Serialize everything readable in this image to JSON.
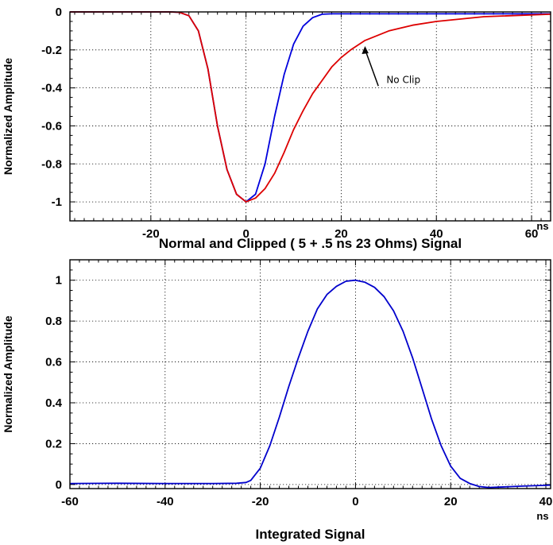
{
  "chart_data": [
    {
      "type": "line",
      "title": "",
      "xlabel": "Normal and Clipped ( 5 + .5 ns  23 Ohms) Signal",
      "ylabel": "Normalized Amplitude",
      "x_unit": "ns",
      "xlim": [
        -37,
        64
      ],
      "ylim": [
        -1.1,
        0.0
      ],
      "xticks": [
        -20,
        0,
        20,
        40,
        60
      ],
      "yticks": [
        0,
        -0.2,
        -0.4,
        -0.6,
        -0.8,
        -1
      ],
      "xtick_labels": [
        "-20",
        "0",
        "20",
        "40",
        "60"
      ],
      "ytick_labels": [
        "0",
        "-0.2",
        "-0.4",
        "-0.6",
        "-0.8",
        "-1"
      ],
      "grid": true,
      "series": [
        {
          "color": "#0000dd",
          "x": [
            -37,
            -20,
            -16,
            -14,
            -12,
            -10,
            -8,
            -6,
            -4,
            -2,
            0,
            2,
            4,
            6,
            8,
            10,
            12,
            14,
            16,
            18,
            20,
            22,
            25,
            30,
            40,
            50,
            64
          ],
          "y": [
            0,
            0,
            0,
            -0.002,
            -0.02,
            -0.1,
            -0.3,
            -0.6,
            -0.83,
            -0.96,
            -1.0,
            -0.96,
            -0.8,
            -0.55,
            -0.33,
            -0.17,
            -0.075,
            -0.03,
            -0.012,
            -0.01,
            -0.01,
            -0.01,
            -0.01,
            -0.01,
            -0.01,
            -0.01,
            -0.01
          ]
        },
        {
          "color": "#dd0000",
          "x": [
            -37,
            -20,
            -16,
            -14,
            -12,
            -10,
            -8,
            -6,
            -4,
            -2,
            0,
            2,
            4,
            6,
            8,
            10,
            12,
            14,
            16,
            18,
            20,
            22,
            25,
            30,
            35,
            40,
            50,
            64
          ],
          "y": [
            0,
            0,
            0,
            -0.002,
            -0.02,
            -0.1,
            -0.3,
            -0.6,
            -0.83,
            -0.96,
            -1.0,
            -0.98,
            -0.93,
            -0.85,
            -0.74,
            -0.62,
            -0.52,
            -0.43,
            -0.36,
            -0.29,
            -0.24,
            -0.2,
            -0.15,
            -0.1,
            -0.07,
            -0.05,
            -0.025,
            -0.012
          ]
        }
      ],
      "annotations": [
        {
          "text": "No Clip",
          "arrow_to": [
            25,
            -0.18
          ]
        }
      ]
    },
    {
      "type": "line",
      "title": "",
      "xlabel": "Integrated Signal",
      "ylabel": "Normalized Amplitude",
      "x_unit": "ns",
      "xlim": [
        -60,
        41
      ],
      "ylim": [
        -0.02,
        1.1
      ],
      "xticks": [
        -60,
        -40,
        -20,
        0,
        20,
        40
      ],
      "yticks": [
        0,
        0.2,
        0.4,
        0.6,
        0.8,
        1
      ],
      "xtick_labels": [
        "-60",
        "-40",
        "-20",
        "0",
        "20",
        "40"
      ],
      "ytick_labels": [
        "0",
        "0.2",
        "0.4",
        "0.6",
        "0.8",
        "1"
      ],
      "grid": true,
      "series": [
        {
          "color": "#0000cc",
          "x": [
            -60,
            -50,
            -40,
            -30,
            -25,
            -23,
            -22,
            -20,
            -18,
            -16,
            -14,
            -12,
            -10,
            -8,
            -6,
            -4,
            -2,
            0,
            2,
            4,
            6,
            8,
            10,
            12,
            14,
            16,
            18,
            20,
            22,
            24,
            26,
            28,
            30,
            35,
            40,
            41
          ],
          "y": [
            0.005,
            0.006,
            0.005,
            0.005,
            0.006,
            0.01,
            0.02,
            0.08,
            0.19,
            0.33,
            0.48,
            0.62,
            0.75,
            0.86,
            0.93,
            0.97,
            0.995,
            1.0,
            0.99,
            0.965,
            0.92,
            0.85,
            0.75,
            0.62,
            0.47,
            0.32,
            0.19,
            0.09,
            0.03,
            0.005,
            -0.01,
            -0.015,
            -0.013,
            -0.008,
            -0.004,
            -0.003
          ]
        }
      ]
    }
  ]
}
